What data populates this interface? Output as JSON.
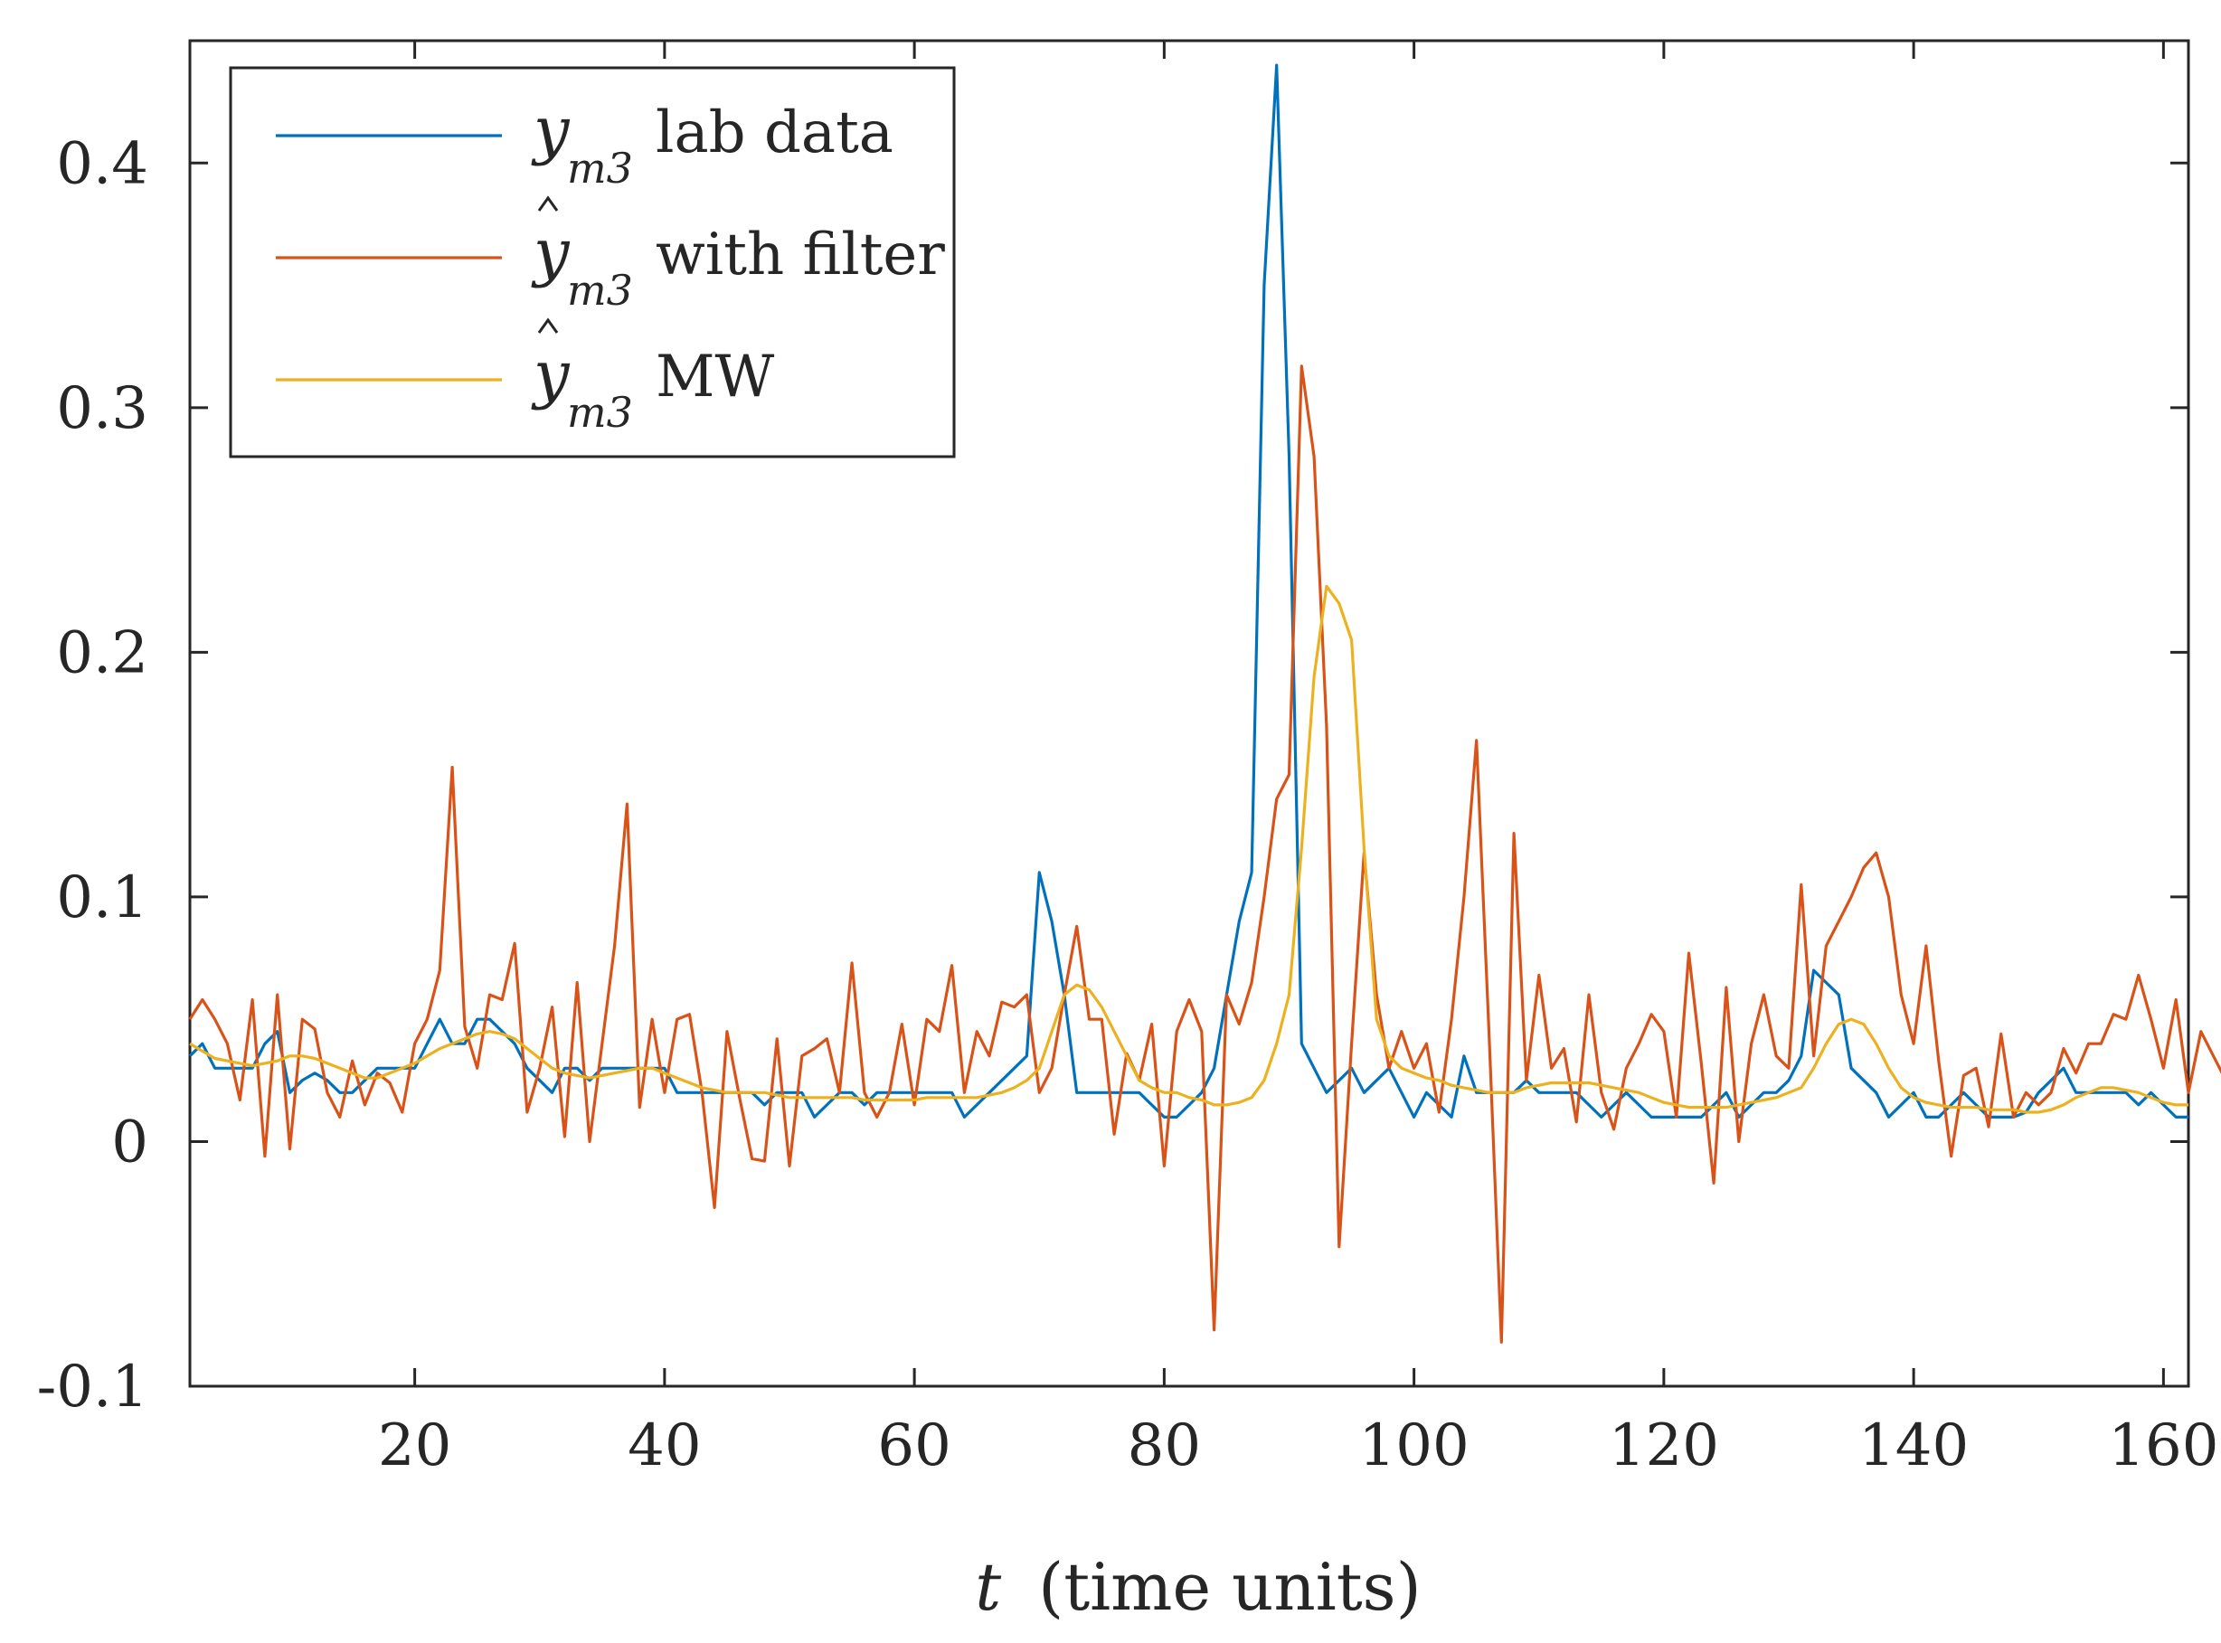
{
  "chart_data": {
    "type": "line",
    "title": "",
    "xlabel": "t (time units)",
    "xlabel_var": "t",
    "xlabel_units": "(time units)",
    "ylabel": "",
    "xlim": [
      2,
      162
    ],
    "ylim": [
      -0.1,
      0.45
    ],
    "xticks": [
      20,
      40,
      60,
      80,
      100,
      120,
      140,
      160
    ],
    "xtick_labels": [
      "20",
      "40",
      "60",
      "80",
      "100",
      "120",
      "140",
      "160"
    ],
    "yticks": [
      -0.1,
      0,
      0.1,
      0.2,
      0.3,
      0.4
    ],
    "ytick_labels": [
      "-0.1",
      "0",
      "0.1",
      "0.2",
      "0.3",
      "0.4"
    ],
    "grid": false,
    "legend_position": "top-left",
    "series": [
      {
        "name": "y_m3 lab data",
        "legend_symbol": "y",
        "legend_hat": false,
        "legend_sub": "m3",
        "legend_text": "lab data",
        "color": "#0072BD",
        "x_start": 2,
        "values": [
          0.035,
          0.04,
          0.03,
          0.03,
          0.03,
          0.03,
          0.04,
          0.045,
          0.02,
          0.025,
          0.028,
          0.025,
          0.02,
          0.02,
          0.025,
          0.03,
          0.03,
          0.03,
          0.03,
          0.04,
          0.05,
          0.04,
          0.04,
          0.05,
          0.05,
          0.045,
          0.04,
          0.03,
          0.025,
          0.02,
          0.03,
          0.03,
          0.025,
          0.03,
          0.03,
          0.03,
          0.03,
          0.03,
          0.03,
          0.02,
          0.02,
          0.02,
          0.02,
          0.02,
          0.02,
          0.02,
          0.015,
          0.02,
          0.02,
          0.02,
          0.01,
          0.015,
          0.02,
          0.02,
          0.015,
          0.02,
          0.02,
          0.02,
          0.02,
          0.02,
          0.02,
          0.02,
          0.01,
          0.015,
          0.02,
          0.025,
          0.03,
          0.035,
          0.11,
          0.09,
          0.06,
          0.02,
          0.02,
          0.02,
          0.02,
          0.02,
          0.02,
          0.015,
          0.01,
          0.01,
          0.015,
          0.02,
          0.03,
          0.06,
          0.09,
          0.11,
          0.35,
          0.44,
          0.28,
          0.04,
          0.03,
          0.02,
          0.025,
          0.03,
          0.02,
          0.025,
          0.03,
          0.02,
          0.01,
          0.02,
          0.015,
          0.01,
          0.035,
          0.02,
          0.02,
          0.02,
          0.02,
          0.025,
          0.02,
          0.02,
          0.02,
          0.02,
          0.015,
          0.01,
          0.015,
          0.02,
          0.015,
          0.01,
          0.01,
          0.01,
          0.01,
          0.01,
          0.015,
          0.02,
          0.01,
          0.015,
          0.02,
          0.02,
          0.025,
          0.035,
          0.07,
          0.065,
          0.06,
          0.03,
          0.025,
          0.02,
          0.01,
          0.015,
          0.02,
          0.01,
          0.01,
          0.015,
          0.02,
          0.015,
          0.01,
          0.01,
          0.01,
          0.012,
          0.02,
          0.025,
          0.03,
          0.02,
          0.02,
          0.02,
          0.02,
          0.02,
          0.015,
          0.02,
          0.015,
          0.01,
          0.01
        ]
      },
      {
        "name": "ŷ_m3 with filter",
        "legend_symbol": "y",
        "legend_hat": true,
        "legend_sub": "m3",
        "legend_text": "with filter",
        "color": "#D95319",
        "x_start": 2,
        "values": [
          0.05,
          0.058,
          0.05,
          0.04,
          0.017,
          0.058,
          -0.006,
          0.06,
          -0.003,
          0.05,
          0.046,
          0.02,
          0.01,
          0.033,
          0.015,
          0.028,
          0.024,
          0.012,
          0.04,
          0.05,
          0.07,
          0.153,
          0.047,
          0.03,
          0.06,
          0.058,
          0.081,
          0.012,
          0.03,
          0.055,
          0.002,
          0.065,
          0.0,
          0.04,
          0.08,
          0.138,
          0.014,
          0.05,
          0.02,
          0.05,
          0.052,
          0.02,
          -0.027,
          0.045,
          0.018,
          -0.007,
          -0.008,
          0.042,
          -0.01,
          0.035,
          0.038,
          0.042,
          0.02,
          0.073,
          0.02,
          0.01,
          0.02,
          0.048,
          0.015,
          0.05,
          0.045,
          0.072,
          0.02,
          0.045,
          0.035,
          0.057,
          0.055,
          0.06,
          0.02,
          0.03,
          0.06,
          0.088,
          0.05,
          0.05,
          0.003,
          0.036,
          0.025,
          0.048,
          -0.01,
          0.045,
          0.058,
          0.045,
          -0.077,
          0.06,
          0.048,
          0.065,
          0.1,
          0.14,
          0.15,
          0.317,
          0.28,
          0.17,
          -0.043,
          0.04,
          0.118,
          0.06,
          0.03,
          0.045,
          0.03,
          0.04,
          0.012,
          0.05,
          0.1,
          0.164,
          0.045,
          -0.082,
          0.126,
          0.025,
          0.068,
          0.03,
          0.038,
          0.008,
          0.06,
          0.02,
          0.005,
          0.03,
          0.04,
          0.052,
          0.045,
          0.01,
          0.077,
          0.032,
          -0.017,
          0.063,
          0.0,
          0.04,
          0.06,
          0.035,
          0.03,
          0.105,
          0.035,
          0.08,
          0.09,
          0.1,
          0.112,
          0.118,
          0.1,
          0.06,
          0.04,
          0.08,
          0.033,
          -0.006,
          0.027,
          0.03,
          0.006,
          0.044,
          0.01,
          0.02,
          0.015,
          0.02,
          0.038,
          0.028,
          0.04,
          0.04,
          0.052,
          0.05,
          0.068,
          0.05,
          0.03,
          0.058,
          0.02,
          0.045,
          0.035,
          0.025
        ]
      },
      {
        "name": "ŷ_m3 MW",
        "legend_symbol": "y",
        "legend_hat": true,
        "legend_sub": "m3",
        "legend_text": "MW",
        "color": "#EDB120",
        "x_start": 2,
        "values": [
          0.04,
          0.037,
          0.034,
          0.033,
          0.032,
          0.031,
          0.032,
          0.033,
          0.035,
          0.035,
          0.034,
          0.032,
          0.03,
          0.028,
          0.026,
          0.026,
          0.028,
          0.03,
          0.032,
          0.035,
          0.038,
          0.04,
          0.042,
          0.044,
          0.045,
          0.044,
          0.042,
          0.038,
          0.034,
          0.03,
          0.028,
          0.027,
          0.026,
          0.027,
          0.028,
          0.029,
          0.03,
          0.03,
          0.028,
          0.026,
          0.024,
          0.022,
          0.021,
          0.02,
          0.02,
          0.02,
          0.02,
          0.019,
          0.018,
          0.018,
          0.018,
          0.018,
          0.018,
          0.018,
          0.017,
          0.017,
          0.017,
          0.017,
          0.017,
          0.018,
          0.018,
          0.018,
          0.018,
          0.018,
          0.019,
          0.02,
          0.022,
          0.025,
          0.03,
          0.045,
          0.06,
          0.064,
          0.062,
          0.055,
          0.045,
          0.035,
          0.025,
          0.022,
          0.02,
          0.02,
          0.018,
          0.017,
          0.015,
          0.015,
          0.016,
          0.018,
          0.025,
          0.04,
          0.06,
          0.12,
          0.19,
          0.227,
          0.22,
          0.205,
          0.12,
          0.05,
          0.035,
          0.03,
          0.028,
          0.026,
          0.025,
          0.023,
          0.022,
          0.021,
          0.02,
          0.02,
          0.02,
          0.022,
          0.023,
          0.024,
          0.024,
          0.024,
          0.024,
          0.023,
          0.022,
          0.021,
          0.02,
          0.018,
          0.016,
          0.015,
          0.014,
          0.014,
          0.014,
          0.014,
          0.015,
          0.016,
          0.017,
          0.018,
          0.02,
          0.022,
          0.03,
          0.04,
          0.048,
          0.05,
          0.048,
          0.04,
          0.03,
          0.022,
          0.018,
          0.016,
          0.015,
          0.014,
          0.014,
          0.014,
          0.013,
          0.013,
          0.013,
          0.012,
          0.012,
          0.013,
          0.015,
          0.018,
          0.02,
          0.022,
          0.022,
          0.021,
          0.02,
          0.018,
          0.016,
          0.015,
          0.015
        ]
      }
    ]
  }
}
